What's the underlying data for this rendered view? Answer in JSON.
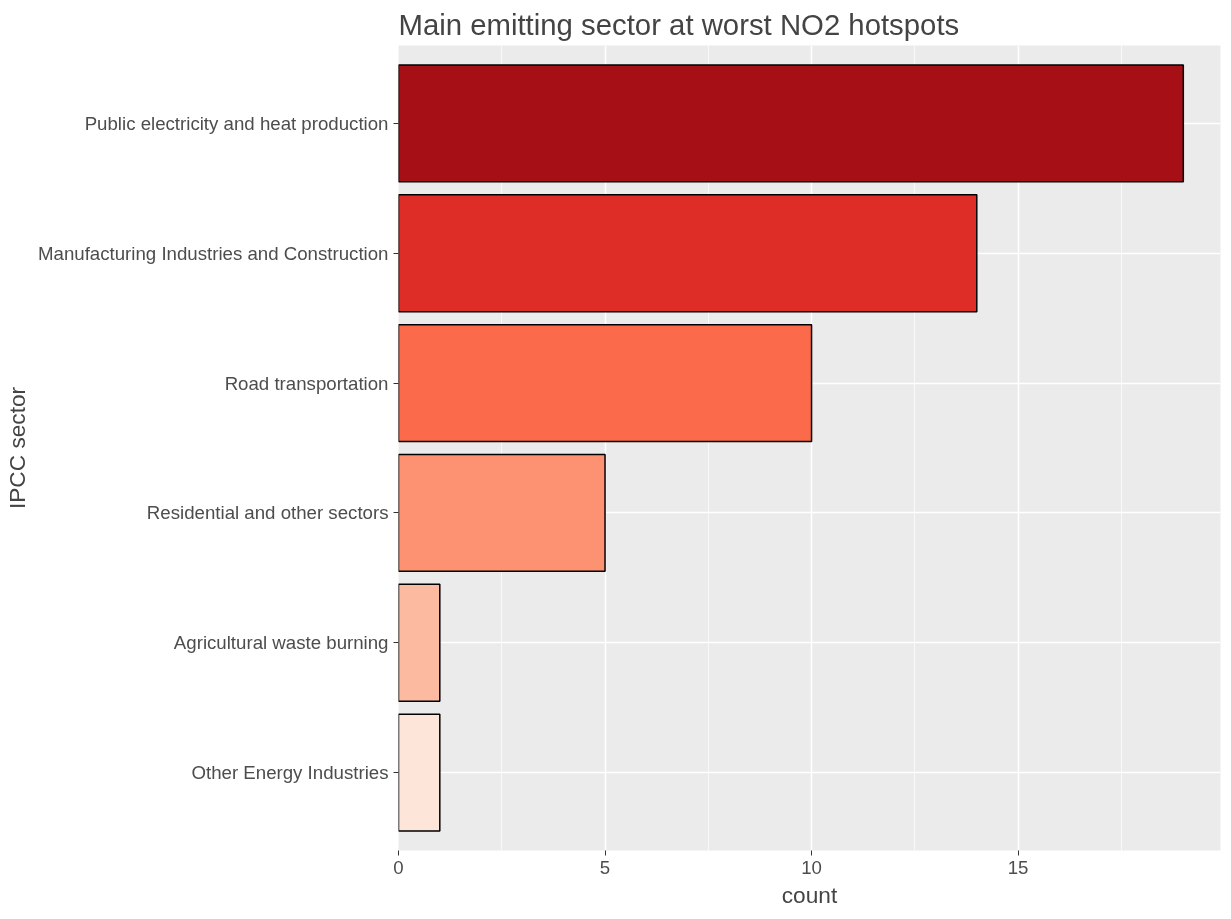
{
  "chart_data": {
    "type": "bar",
    "orientation": "horizontal",
    "title": "Main emitting sector at worst NO2 hotspots",
    "xlabel": "count",
    "ylabel": "IPCC sector",
    "categories": [
      "Public electricity and heat production",
      "Manufacturing Industries and Construction",
      "Road transportation",
      "Residential and other sectors",
      "Agricultural waste burning",
      "Other Energy Industries"
    ],
    "values": [
      19,
      14,
      10,
      5,
      1,
      1
    ],
    "colors": [
      "#a50f15",
      "#de2d26",
      "#fb6a4a",
      "#fc9272",
      "#fcbba1",
      "#fee5d9"
    ],
    "xlim": [
      0,
      19.9
    ],
    "xticks": [
      0,
      5,
      10,
      15
    ],
    "grid": true
  }
}
